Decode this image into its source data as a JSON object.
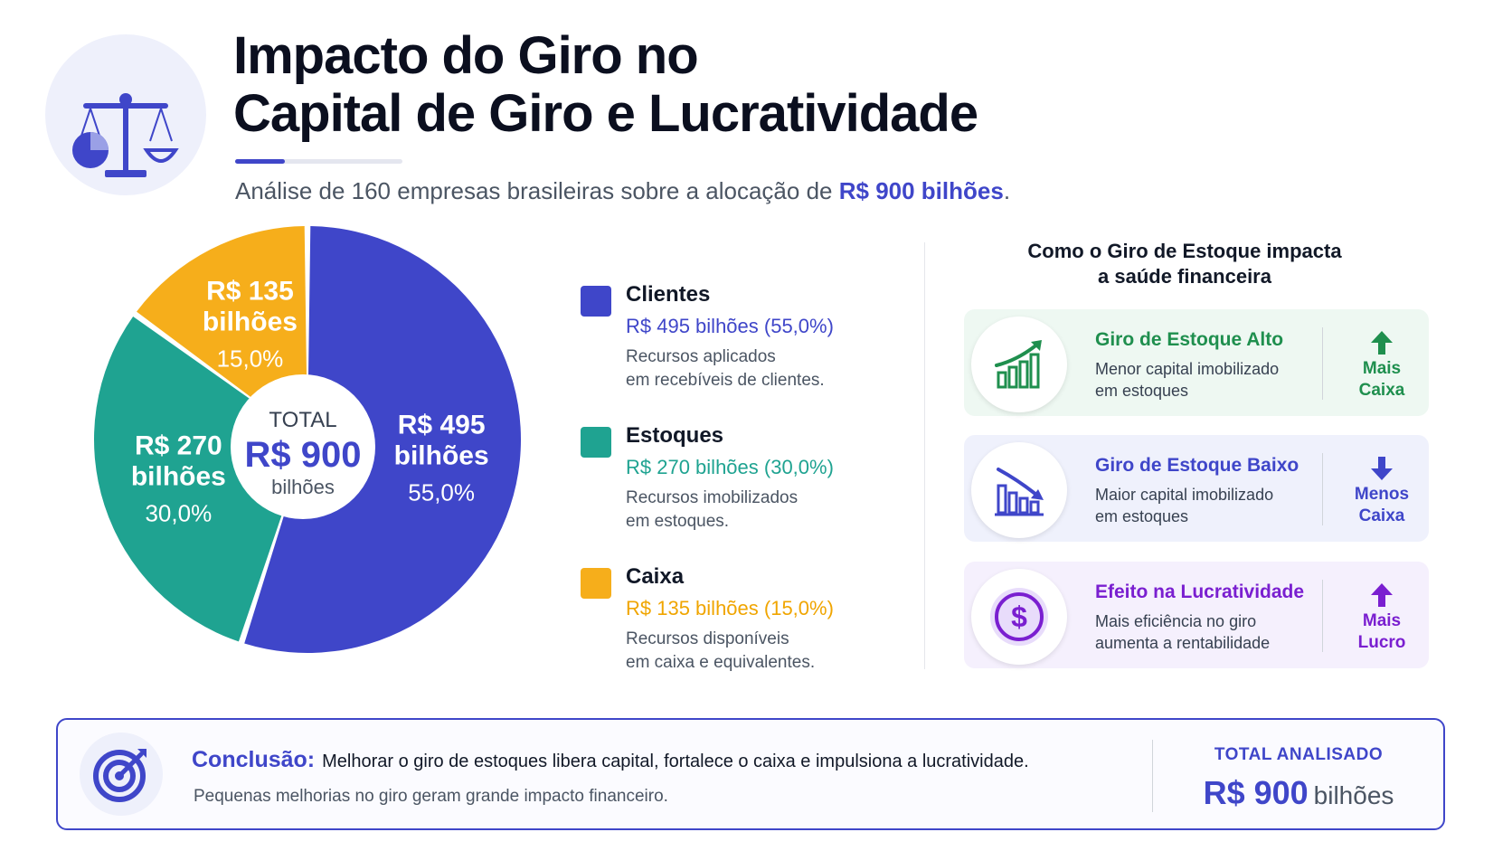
{
  "header": {
    "title_line1": "Impacto do Giro no",
    "title_line2": "Capital de Giro e Lucratividade",
    "subtitle_prefix": "Análise de 160 empresas brasileiras sobre a alocação de ",
    "subtitle_highlight": "R$ 900 bilhões",
    "subtitle_suffix": ".",
    "logo_icon": "balance-scale-icon"
  },
  "chart_data": {
    "type": "pie",
    "title": "",
    "center": {
      "label": "TOTAL",
      "value": "R$ 900",
      "unit": "bilhões"
    },
    "total": 900,
    "categories": [
      "Clientes",
      "Estoques",
      "Caixa"
    ],
    "values": [
      495,
      270,
      135
    ],
    "percentages": [
      55.0,
      30.0,
      15.0
    ],
    "colors": [
      "#3f46c9",
      "#1fa391",
      "#f6ae1b"
    ],
    "slice_labels": [
      {
        "value": "R$ 495",
        "unit": "bilhões",
        "pct": "55,0%"
      },
      {
        "value": "R$ 270",
        "unit": "bilhões",
        "pct": "30,0%"
      },
      {
        "value": "R$ 135",
        "unit": "bilhões",
        "pct": "15,0%"
      }
    ],
    "legend": [
      {
        "label": "Clientes",
        "value": "R$ 495 bilhões (55,0%)",
        "desc_line1": "Recursos aplicados",
        "desc_line2": "em recebíveis de clientes.",
        "color": "#3f46c9"
      },
      {
        "label": "Estoques",
        "value": "R$ 270 bilhões (30,0%)",
        "desc_line1": "Recursos imobilizados",
        "desc_line2": "em estoques.",
        "color": "#1fa391"
      },
      {
        "label": "Caixa",
        "value": "R$ 135 bilhões (15,0%)",
        "desc_line1": "Recursos disponíveis",
        "desc_line2": "em caixa e equivalentes.",
        "color": "#f6ae1b"
      }
    ]
  },
  "impact": {
    "title_line1": "Como o Giro de Estoque impacta",
    "title_line2": "a saúde financeira",
    "cards": [
      {
        "title": "Giro de Estoque Alto",
        "desc_line1": "Menor capital imobilizado",
        "desc_line2": "em estoques",
        "result_line1": "Mais",
        "result_line2": "Caixa",
        "icon": "rising-bar-chart-icon",
        "arrow": "arrow-up-icon",
        "color": "#1f8f4e",
        "bg": "#eef8f2"
      },
      {
        "title": "Giro de Estoque Baixo",
        "desc_line1": "Maior capital imobilizado",
        "desc_line2": "em estoques",
        "result_line1": "Menos",
        "result_line2": "Caixa",
        "icon": "falling-bar-chart-icon",
        "arrow": "arrow-down-icon",
        "color": "#3f46c9",
        "bg": "#eff1fc"
      },
      {
        "title": "Efeito na Lucratividade",
        "desc_line1": "Mais eficiência no giro",
        "desc_line2": "aumenta a rentabilidade",
        "result_line1": "Mais",
        "result_line2": "Lucro",
        "icon": "dollar-coin-icon",
        "arrow": "arrow-up-icon",
        "color": "#7a1fd0",
        "bg": "#f5f0fd"
      }
    ]
  },
  "conclusion": {
    "label": "Conclusão:",
    "text": "Melhorar o giro de estoques libera capital, fortalece o caixa e impulsiona a lucratividade.",
    "subtext": "Pequenas melhorias no giro geram grande impacto financeiro.",
    "icon": "target-icon",
    "total_label": "TOTAL ANALISADO",
    "total_value": "R$ 900",
    "total_unit": "bilhões"
  }
}
